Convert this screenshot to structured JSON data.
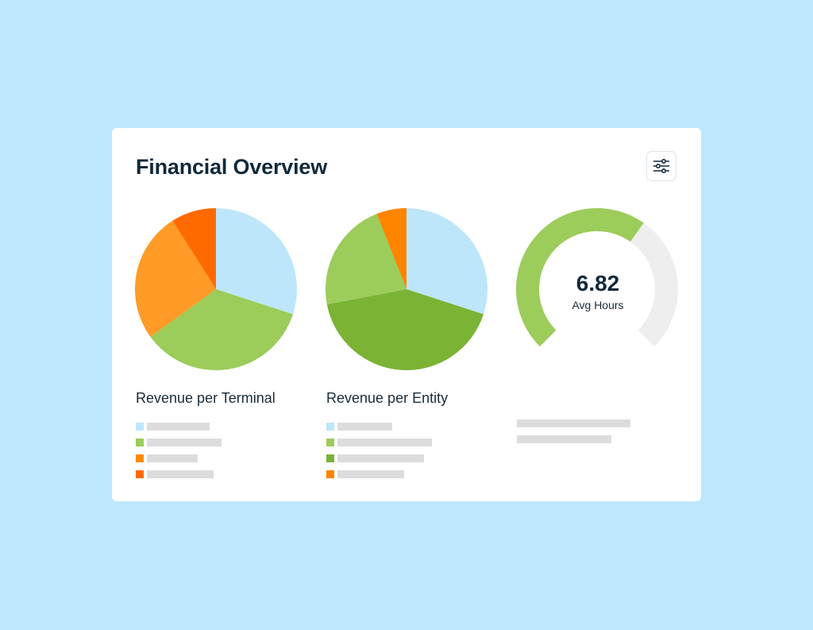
{
  "card": {
    "title": "Financial Overview",
    "settings_icon": "sliders-icon"
  },
  "chart_data": [
    {
      "type": "pie",
      "title": "Revenue per Terminal",
      "values": [
        30,
        35,
        26,
        9
      ],
      "colors": [
        "#bde6fb",
        "#9ccc5a",
        "#ff9b26",
        "#ff6a00"
      ]
    },
    {
      "type": "pie",
      "title": "Revenue per Entity",
      "values": [
        30,
        42,
        22,
        6
      ],
      "colors": [
        "#bde6fb",
        "#7bb335",
        "#9ccc5a",
        "#ff8400"
      ]
    },
    {
      "type": "gauge",
      "value": "6.82",
      "label": "Avg Hours",
      "fill_fraction": 0.63,
      "colors": {
        "fill": "#9ccc5a",
        "track": "#eeeeee"
      }
    }
  ],
  "legends": {
    "terminal": [
      "#bde6fb",
      "#9ccc5a",
      "#ff8a00",
      "#ff6a00"
    ],
    "entity": [
      "#bde6fb",
      "#9ccc5a",
      "#7bb335",
      "#ff8400"
    ]
  }
}
